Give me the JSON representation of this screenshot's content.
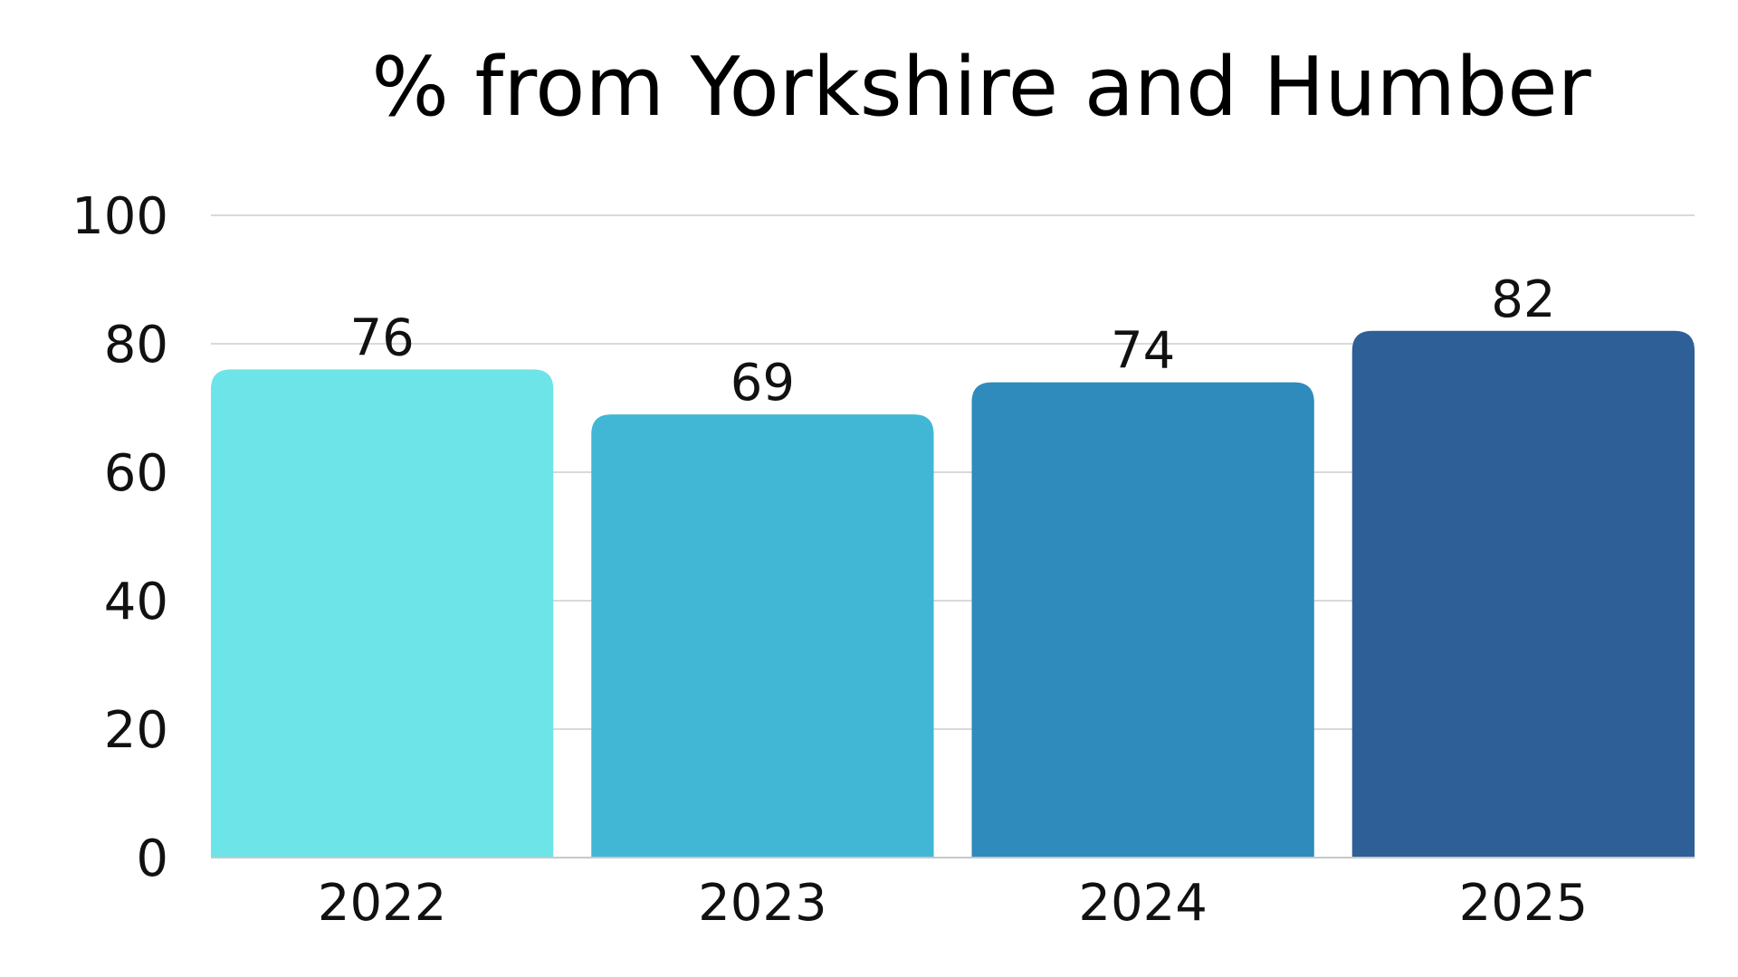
{
  "chart_data": {
    "type": "bar",
    "title": "% from Yorkshire and Humber",
    "xlabel": "",
    "ylabel": "",
    "categories": [
      "2022",
      "2023",
      "2024",
      "2025"
    ],
    "values": [
      76,
      69,
      74,
      82
    ],
    "data_labels": [
      "76",
      "69",
      "74",
      "82"
    ],
    "ylim": [
      0,
      100
    ],
    "yticks": [
      0,
      20,
      40,
      60,
      80,
      100
    ],
    "ytick_labels": [
      "0",
      "20",
      "40",
      "60",
      "80",
      "100"
    ],
    "grid": true,
    "legend": "none",
    "bar_colors": [
      "#6de4e8",
      "#42b6d5",
      "#2e8bbb",
      "#2e5f96"
    ]
  }
}
